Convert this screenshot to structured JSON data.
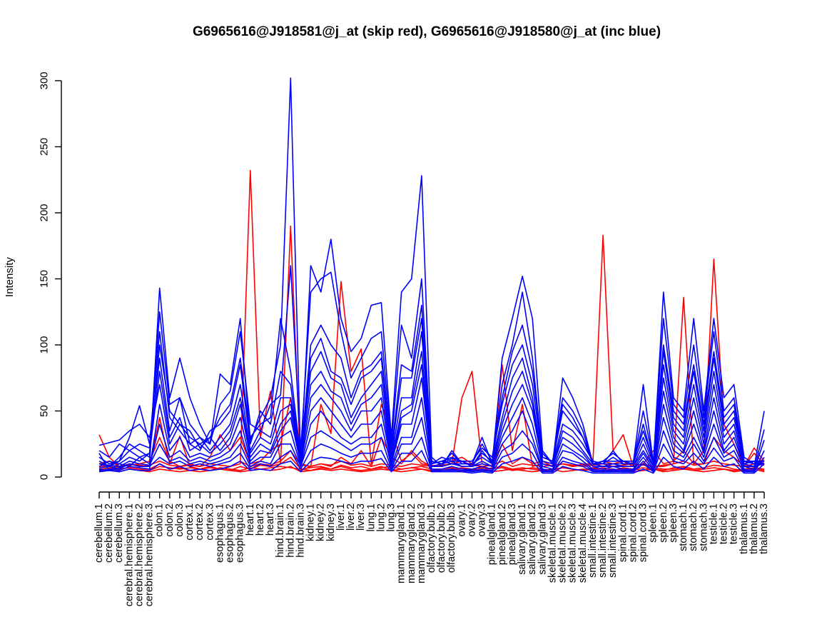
{
  "chart_data": {
    "type": "line",
    "title": "G6965616@J918581@j_at (skip red), G6965616@J918580@j_at (inc blue)",
    "xlabel": "",
    "ylabel": "Intensity",
    "ylim": [
      0,
      300
    ],
    "yticks": [
      0,
      50,
      100,
      150,
      200,
      250,
      300
    ],
    "grid": false,
    "legend": "none",
    "colors": {
      "skip": "#ff0000",
      "inc": "#0000ff"
    },
    "categories": [
      "cerebellum.1",
      "cerebellum.2",
      "cerebellum.3",
      "cerebral.hemisphere.1",
      "cerebral.hemisphere.2",
      "cerebral.hemisphere.3",
      "colon.1",
      "colon.2",
      "colon.3",
      "cortex.1",
      "cortex.2",
      "cortex.3",
      "esophagus.1",
      "esophagus.2",
      "esophagus.3",
      "heart.1",
      "heart.2",
      "heart.3",
      "hind.brain.1",
      "hind.brain.2",
      "hind.brain.3",
      "kidney.1",
      "kidney.2",
      "kidney.3",
      "liver.1",
      "liver.2",
      "liver.3",
      "lung.1",
      "lung.2",
      "lung.3",
      "mammarygland.1",
      "mammarygland.2",
      "mammarygland.3",
      "olfactory.bulb.1",
      "olfactory.bulb.2",
      "olfactory.bulb.3",
      "ovary.1",
      "ovary.2",
      "ovary.3",
      "pinealgland.1",
      "pinealgland.2",
      "pinealgland.3",
      "salivary.gland.1",
      "salivary.gland.2",
      "salivary.gland.3",
      "skeletal.muscle.1",
      "skeletal.muscle.2",
      "skeletal.muscle.3",
      "skeletal.muscle.4",
      "small.intestine.1",
      "small.intestine.2",
      "small.intestine.3",
      "spinal.cord.1",
      "spinal.cord.2",
      "spinal.cord.3",
      "spleen.1",
      "spleen.2",
      "spleen.3",
      "stomach.1",
      "stomach.2",
      "stomach.3",
      "testicle.1",
      "testicle.2",
      "testicle.3",
      "thalamus.1",
      "thalamus.2",
      "thalamus.3"
    ],
    "series": [
      {
        "group": "skip",
        "values": [
          32,
          15,
          8,
          10,
          9,
          8,
          45,
          10,
          31,
          8,
          6,
          8,
          6,
          8,
          10,
          232,
          30,
          65,
          10,
          190,
          5,
          8,
          55,
          33,
          148,
          80,
          97,
          10,
          55,
          35,
          12,
          18,
          10,
          9,
          8,
          10,
          60,
          80,
          10,
          8,
          85,
          20,
          55,
          8,
          10,
          8,
          10,
          8,
          10,
          10,
          183,
          20,
          32,
          8,
          10,
          8,
          8,
          10,
          136,
          10,
          20,
          165,
          40,
          25,
          8,
          18,
          10
        ]
      },
      {
        "group": "skip",
        "values": [
          10,
          12,
          8,
          9,
          10,
          12,
          30,
          12,
          8,
          10,
          8,
          15,
          32,
          20,
          30,
          10,
          12,
          20,
          25,
          60,
          10,
          8,
          10,
          8,
          15,
          10,
          20,
          8,
          30,
          15,
          10,
          20,
          12,
          8,
          10,
          12,
          15,
          10,
          8,
          9,
          25,
          10,
          15,
          10,
          12,
          8,
          10,
          8,
          9,
          10,
          12,
          10,
          12,
          8,
          10,
          20,
          10,
          12,
          20,
          10,
          10,
          30,
          20,
          15,
          8,
          22,
          12
        ]
      },
      {
        "group": "skip",
        "values": [
          6,
          7,
          5,
          8,
          7,
          6,
          10,
          6,
          7,
          5,
          6,
          7,
          6,
          5,
          8,
          6,
          9,
          8,
          10,
          15,
          6,
          7,
          8,
          6,
          9,
          7,
          8,
          6,
          7,
          8,
          6,
          7,
          8,
          6,
          5,
          6,
          7,
          6,
          5,
          7,
          8,
          6,
          7,
          6,
          5,
          6,
          7,
          6,
          5,
          6,
          7,
          6,
          5,
          6,
          7,
          6,
          5,
          7,
          8,
          6,
          7,
          9,
          8,
          6,
          5,
          7,
          6
        ]
      },
      {
        "group": "skip",
        "values": [
          5,
          6,
          6,
          7,
          6,
          5,
          8,
          7,
          6,
          7,
          6,
          5,
          7,
          6,
          5,
          7,
          6,
          7,
          8,
          7,
          6,
          5,
          7,
          6,
          8,
          6,
          5,
          6,
          8,
          5,
          6,
          7,
          6,
          5,
          6,
          7,
          5,
          6,
          7,
          6,
          7,
          5,
          6,
          7,
          6,
          5,
          7,
          6,
          5,
          7,
          6,
          5,
          7,
          6,
          5,
          7,
          6,
          6,
          7,
          5,
          6,
          7,
          6,
          5,
          6,
          7,
          5
        ]
      },
      {
        "group": "skip",
        "values": [
          8,
          9,
          7,
          10,
          8,
          9,
          12,
          9,
          8,
          9,
          8,
          10,
          9,
          8,
          12,
          8,
          10,
          9,
          12,
          20,
          9,
          8,
          10,
          9,
          12,
          9,
          10,
          8,
          10,
          9,
          8,
          10,
          9,
          8,
          9,
          10,
          12,
          9,
          8,
          9,
          12,
          8,
          10,
          9,
          8,
          9,
          10,
          9,
          8,
          9,
          10,
          8,
          9,
          10,
          9,
          8,
          9,
          10,
          12,
          9,
          10,
          12,
          10,
          9,
          8,
          10,
          9
        ]
      },
      {
        "group": "skip",
        "values": [
          4,
          5,
          4,
          6,
          5,
          4,
          6,
          5,
          4,
          5,
          4,
          5,
          6,
          5,
          4,
          5,
          6,
          5,
          6,
          8,
          4,
          5,
          6,
          5,
          6,
          5,
          4,
          5,
          6,
          5,
          4,
          5,
          6,
          4,
          5,
          6,
          4,
          5,
          6,
          4,
          5,
          6,
          5,
          4,
          5,
          6,
          4,
          5,
          6,
          5,
          4,
          5,
          6,
          4,
          5,
          6,
          4,
          5,
          6,
          5,
          4,
          5,
          6,
          4,
          5,
          6,
          4
        ]
      },
      {
        "group": "inc",
        "values": [
          18,
          5,
          10,
          8,
          15,
          10,
          143,
          60,
          90,
          60,
          40,
          25,
          78,
          70,
          120,
          28,
          45,
          60,
          100,
          302,
          10,
          160,
          140,
          180,
          120,
          95,
          105,
          130,
          132,
          30,
          140,
          150,
          228,
          15,
          8,
          20,
          10,
          10,
          30,
          10,
          90,
          120,
          152,
          120,
          20,
          10,
          75,
          60,
          40,
          10,
          10,
          20,
          10,
          10,
          70,
          10,
          140,
          60,
          50,
          120,
          50,
          120,
          60,
          70,
          15,
          10,
          10
        ]
      },
      {
        "group": "inc",
        "values": [
          10,
          8,
          12,
          20,
          15,
          18,
          125,
          55,
          60,
          40,
          30,
          25,
          55,
          65,
          110,
          40,
          35,
          55,
          62,
          160,
          20,
          140,
          150,
          155,
          110,
          75,
          90,
          105,
          110,
          25,
          115,
          90,
          150,
          10,
          12,
          15,
          12,
          8,
          20,
          10,
          70,
          100,
          140,
          90,
          15,
          12,
          60,
          50,
          35,
          10,
          12,
          18,
          12,
          10,
          50,
          12,
          120,
          55,
          45,
          100,
          45,
          110,
          50,
          60,
          12,
          12,
          12
        ]
      },
      {
        "group": "inc",
        "values": [
          12,
          8,
          15,
          25,
          20,
          15,
          100,
          50,
          40,
          30,
          25,
          30,
          45,
          55,
          90,
          30,
          40,
          45,
          120,
          80,
          15,
          100,
          115,
          100,
          90,
          60,
          80,
          85,
          95,
          20,
          85,
          80,
          130,
          12,
          10,
          18,
          10,
          10,
          25,
          12,
          60,
          95,
          115,
          80,
          18,
          10,
          55,
          45,
          30,
          12,
          10,
          15,
          10,
          10,
          40,
          10,
          100,
          50,
          40,
          85,
          40,
          95,
          45,
          55,
          12,
          10,
          12
        ]
      },
      {
        "group": "inc",
        "values": [
          15,
          10,
          12,
          30,
          54,
          25,
          110,
          45,
          35,
          25,
          20,
          35,
          40,
          50,
          85,
          25,
          50,
          40,
          80,
          70,
          12,
          90,
          105,
          80,
          75,
          55,
          75,
          80,
          90,
          18,
          75,
          75,
          120,
          10,
          15,
          12,
          12,
          12,
          22,
          15,
          55,
          85,
          100,
          70,
          15,
          12,
          50,
          40,
          30,
          10,
          12,
          12,
          12,
          12,
          35,
          12,
          95,
          45,
          35,
          80,
          35,
          90,
          40,
          50,
          10,
          12,
          10
        ]
      },
      {
        "group": "inc",
        "values": [
          20,
          15,
          25,
          20,
          25,
          22,
          90,
          35,
          60,
          25,
          30,
          20,
          30,
          40,
          70,
          20,
          35,
          30,
          60,
          60,
          18,
          80,
          95,
          75,
          70,
          45,
          60,
          70,
          80,
          15,
          60,
          60,
          110,
          12,
          10,
          14,
          12,
          8,
          18,
          12,
          45,
          75,
          90,
          60,
          12,
          10,
          40,
          35,
          25,
          12,
          10,
          10,
          10,
          10,
          30,
          10,
          85,
          40,
          30,
          70,
          30,
          80,
          35,
          45,
          12,
          10,
          12
        ]
      },
      {
        "group": "inc",
        "values": [
          8,
          12,
          10,
          15,
          12,
          18,
          80,
          30,
          45,
          20,
          25,
          18,
          25,
          35,
          60,
          18,
          30,
          25,
          50,
          55,
          15,
          70,
          80,
          65,
          60,
          40,
          55,
          60,
          70,
          12,
          50,
          55,
          95,
          10,
          12,
          10,
          10,
          10,
          15,
          10,
          40,
          65,
          80,
          55,
          10,
          8,
          35,
          30,
          20,
          10,
          8,
          10,
          8,
          8,
          25,
          8,
          75,
          35,
          25,
          60,
          25,
          70,
          30,
          40,
          10,
          8,
          10
        ]
      },
      {
        "group": "inc",
        "values": [
          24,
          26,
          28,
          35,
          40,
          30,
          70,
          25,
          40,
          35,
          22,
          30,
          20,
          30,
          55,
          15,
          25,
          20,
          40,
          50,
          12,
          60,
          70,
          60,
          50,
          35,
          50,
          50,
          60,
          10,
          45,
          50,
          85,
          8,
          10,
          12,
          8,
          8,
          12,
          8,
          35,
          55,
          70,
          50,
          10,
          8,
          30,
          25,
          18,
          8,
          8,
          8,
          8,
          8,
          20,
          8,
          65,
          30,
          20,
          50,
          20,
          60,
          25,
          35,
          8,
          8,
          50
        ]
      },
      {
        "group": "inc",
        "values": [
          5,
          6,
          5,
          8,
          7,
          6,
          55,
          20,
          30,
          15,
          18,
          15,
          18,
          25,
          45,
          12,
          20,
          18,
          35,
          45,
          10,
          50,
          60,
          50,
          40,
          30,
          40,
          40,
          50,
          10,
          40,
          40,
          75,
          8,
          8,
          10,
          8,
          8,
          10,
          8,
          30,
          45,
          60,
          40,
          8,
          6,
          25,
          20,
          15,
          8,
          6,
          8,
          6,
          6,
          18,
          6,
          55,
          25,
          18,
          40,
          18,
          50,
          20,
          30,
          8,
          6,
          36
        ]
      },
      {
        "group": "inc",
        "values": [
          6,
          5,
          7,
          10,
          8,
          8,
          40,
          15,
          20,
          12,
          15,
          12,
          15,
          20,
          35,
          10,
          15,
          15,
          30,
          35,
          8,
          40,
          50,
          40,
          30,
          25,
          30,
          30,
          40,
          8,
          30,
          30,
          60,
          6,
          6,
          8,
          6,
          6,
          8,
          6,
          25,
          35,
          50,
          30,
          6,
          5,
          20,
          18,
          12,
          6,
          5,
          6,
          5,
          5,
          15,
          5,
          45,
          20,
          15,
          30,
          15,
          40,
          18,
          25,
          6,
          5,
          28
        ]
      },
      {
        "group": "inc",
        "values": [
          10,
          9,
          8,
          12,
          10,
          9,
          25,
          12,
          15,
          10,
          12,
          10,
          12,
          15,
          25,
          8,
          12,
          10,
          25,
          25,
          8,
          30,
          35,
          30,
          25,
          20,
          25,
          25,
          30,
          6,
          25,
          25,
          45,
          5,
          5,
          6,
          5,
          5,
          6,
          5,
          20,
          25,
          35,
          25,
          5,
          4,
          15,
          12,
          10,
          5,
          4,
          5,
          4,
          4,
          12,
          4,
          35,
          15,
          12,
          25,
          12,
          30,
          15,
          20,
          5,
          4,
          20
        ]
      },
      {
        "group": "inc",
        "values": [
          7,
          8,
          6,
          10,
          8,
          8,
          15,
          10,
          12,
          8,
          10,
          8,
          10,
          12,
          18,
          6,
          10,
          8,
          15,
          20,
          6,
          20,
          25,
          22,
          18,
          15,
          18,
          18,
          20,
          5,
          18,
          18,
          30,
          5,
          5,
          5,
          5,
          4,
          5,
          4,
          15,
          18,
          25,
          18,
          4,
          4,
          12,
          10,
          8,
          4,
          4,
          4,
          4,
          4,
          10,
          4,
          25,
          12,
          10,
          18,
          10,
          22,
          12,
          15,
          4,
          4,
          15
        ]
      },
      {
        "group": "inc",
        "values": [
          4,
          5,
          4,
          6,
          5,
          5,
          10,
          6,
          8,
          5,
          6,
          5,
          6,
          8,
          12,
          5,
          6,
          5,
          10,
          12,
          4,
          12,
          15,
          14,
          12,
          10,
          12,
          12,
          14,
          4,
          12,
          12,
          20,
          4,
          4,
          4,
          4,
          3,
          4,
          3,
          10,
          12,
          15,
          12,
          3,
          3,
          8,
          6,
          5,
          3,
          3,
          3,
          3,
          3,
          6,
          3,
          15,
          8,
          6,
          12,
          6,
          15,
          8,
          10,
          3,
          3,
          10
        ]
      }
    ]
  }
}
